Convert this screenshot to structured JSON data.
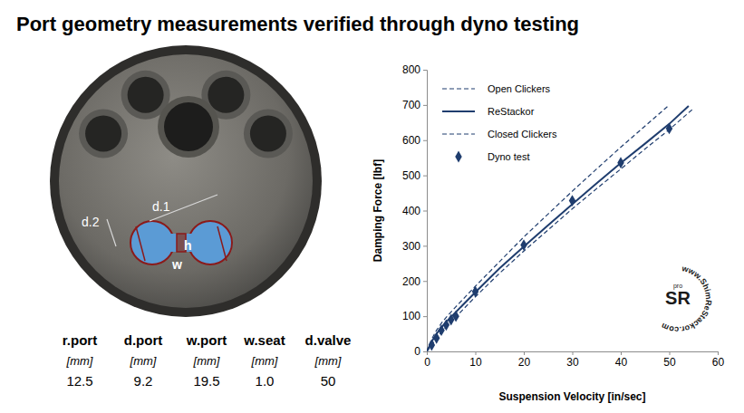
{
  "title": "Port geometry measurements verified through dyno testing",
  "figure": {
    "labels": [
      "d.1",
      "d.2",
      "h",
      "w"
    ]
  },
  "table": {
    "headers": [
      "r.port",
      "d.port",
      "w.port",
      "w.seat",
      "d.valve"
    ],
    "units": [
      "[mm]",
      "[mm]",
      "[mm]",
      "[mm]",
      "[mm]"
    ],
    "rows": [
      [
        "12.5",
        "9.2",
        "19.5",
        "1.0",
        "50"
      ]
    ]
  },
  "watermark": {
    "text": "www.ShimReStackor.com",
    "logo": "SR",
    "badge": "pro"
  },
  "chart_data": {
    "type": "line",
    "x_label": "Suspension Velocity [in/sec]",
    "y_label": "Damping Force [lbf]",
    "x": [
      0,
      1,
      2,
      3,
      4,
      5,
      6,
      10,
      15,
      20,
      25,
      30,
      35,
      40,
      45,
      50,
      54,
      55
    ],
    "series": [
      {
        "name": "Open Clickers",
        "type": "line",
        "line_style": "dashed",
        "color": "#1f3d6e",
        "values": [
          0,
          18,
          38,
          55,
          70,
          85,
          98,
          155,
          222,
          285,
          345,
          405,
          462,
          518,
          575,
          630,
          678,
          690
        ]
      },
      {
        "name": "ReStackor",
        "type": "line",
        "line_style": "solid",
        "color": "#1f3d6e",
        "values": [
          0,
          28,
          50,
          68,
          84,
          98,
          112,
          168,
          236,
          298,
          358,
          418,
          477,
          535,
          590,
          646,
          697,
          null
        ]
      },
      {
        "name": "Closed Clickers",
        "type": "line",
        "line_style": "dashed",
        "color": "#1f3d6e",
        "values": [
          0,
          35,
          60,
          80,
          97,
          112,
          127,
          185,
          255,
          325,
          390,
          455,
          518,
          580,
          640,
          700,
          null,
          null
        ]
      },
      {
        "name": "Dyno test",
        "type": "scatter",
        "marker": "diamond",
        "color": "#1f3d6e",
        "values": [
          null,
          18,
          38,
          60,
          75,
          90,
          100,
          170,
          null,
          302,
          null,
          428,
          null,
          536,
          null,
          633,
          null,
          null
        ]
      }
    ],
    "xlim": [
      0,
      60
    ],
    "xticks": [
      0,
      10,
      20,
      30,
      40,
      50,
      60
    ],
    "ylim": [
      0,
      800
    ],
    "yticks": [
      0,
      100,
      200,
      300,
      400,
      500,
      600,
      700,
      800
    ],
    "grid": false,
    "legend": "upper-left"
  }
}
